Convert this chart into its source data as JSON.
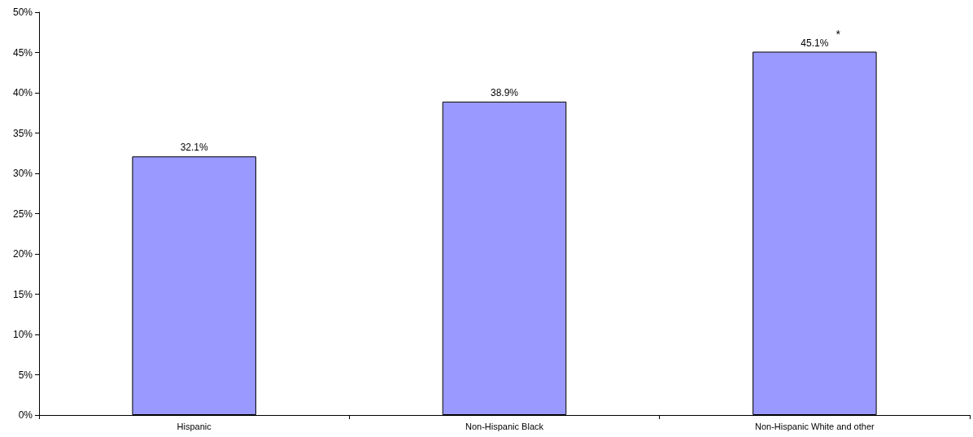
{
  "chart_data": {
    "type": "bar",
    "categories": [
      "Hispanic",
      "Non-Hispanic Black",
      "Non-Hispanic White and other"
    ],
    "values": [
      32.1,
      38.9,
      45.1
    ],
    "color": "#9999ff",
    "value_labels": [
      "32.1%",
      "38.9%",
      "45.1%"
    ],
    "ylim": [
      0,
      50
    ],
    "yticks": [
      {
        "value": 0,
        "label": "0%"
      },
      {
        "value": 5,
        "label": "5%"
      },
      {
        "value": 10,
        "label": "10%"
      },
      {
        "value": 15,
        "label": "15%"
      },
      {
        "value": 20,
        "label": "20%"
      },
      {
        "value": 25,
        "label": "25%"
      },
      {
        "value": 30,
        "label": "30%"
      },
      {
        "value": 35,
        "label": "35%"
      },
      {
        "value": 40,
        "label": "40%"
      },
      {
        "value": 45,
        "label": "45%"
      },
      {
        "value": 50,
        "label": "50%"
      }
    ],
    "annotations": [
      {
        "text": "*",
        "x": "Non-Hispanic White and other",
        "y": 45.1
      }
    ],
    "grid": false
  }
}
